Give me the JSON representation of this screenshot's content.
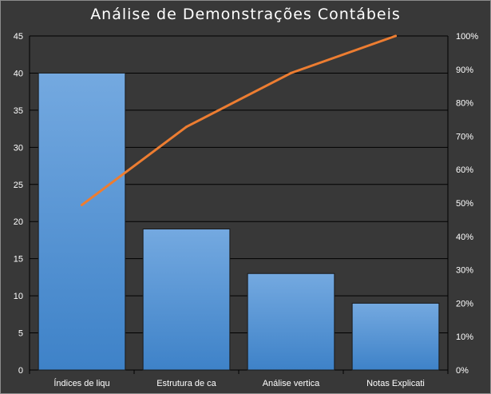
{
  "chart_data": {
    "type": "bar",
    "title": "Análise de Demonstrações Contábeis",
    "categories": [
      "Índices de liqu",
      "Estrutura de ca",
      "Análise vertica",
      "Notas Explicati"
    ],
    "series": [
      {
        "type": "bar",
        "values": [
          40,
          19,
          13,
          9
        ],
        "color": "#5b9bd5"
      },
      {
        "type": "line",
        "axis": "right",
        "values": [
          49.4,
          72.8,
          88.9,
          100
        ],
        "color": "#ed7d31"
      }
    ],
    "ylim": [
      0,
      45
    ],
    "yticks": [
      "0",
      "5",
      "10",
      "15",
      "20",
      "25",
      "30",
      "35",
      "40",
      "45"
    ],
    "y2lim": [
      0,
      100
    ],
    "y2ticks": [
      "0%",
      "10%",
      "20%",
      "30%",
      "40%",
      "50%",
      "60%",
      "70%",
      "80%",
      "90%",
      "100%"
    ],
    "grid": true,
    "legend": "none"
  }
}
